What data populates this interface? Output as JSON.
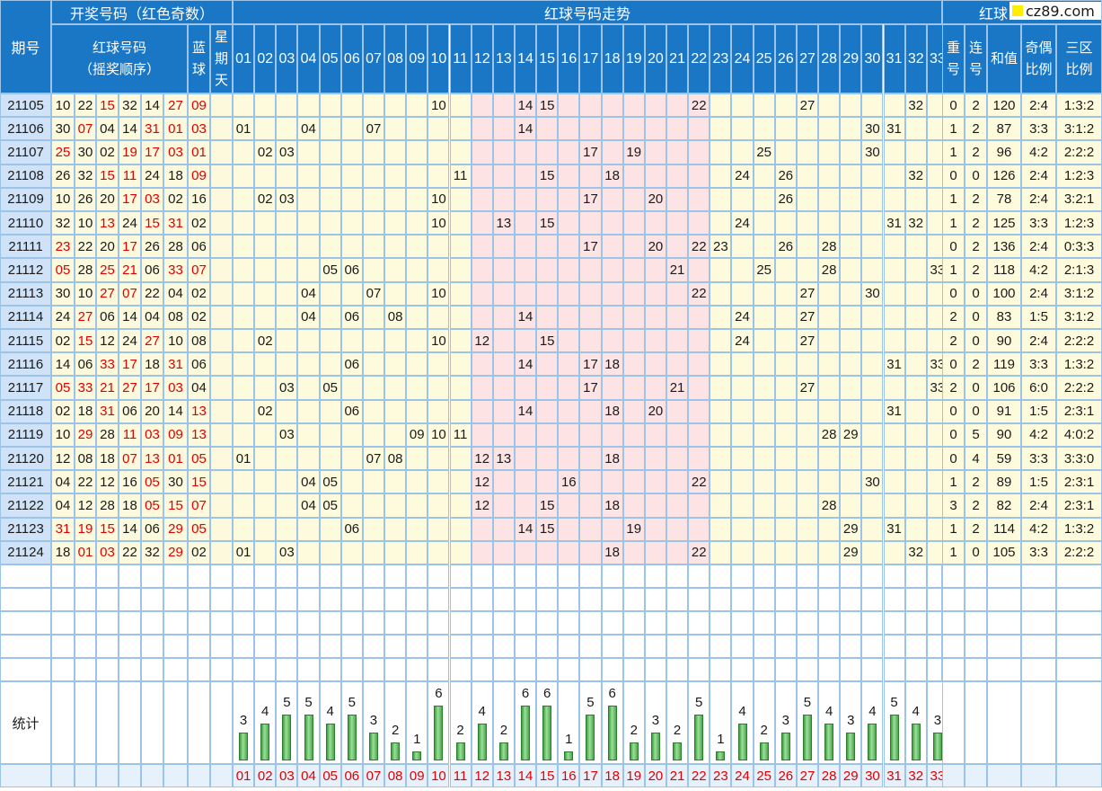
{
  "headers": {
    "period": "期号",
    "draw_section": "开奖号码（红色奇数）",
    "red_balls": "红球号码",
    "draw_order": "（摇奖顺序）",
    "blue_ball": "蓝球",
    "weekday": "星期天",
    "trend_section": "红球号码走势",
    "stats_section": "红球",
    "repeat": "重号",
    "consecutive": "连号",
    "sum": "和值",
    "odd_even": "奇偶比例",
    "three_zone": "三区比例"
  },
  "logo": {
    "text": "cz89.com"
  },
  "stats_label": "统计",
  "chart_data": {
    "type": "table",
    "title": "红球号码走势",
    "columns": [
      "01",
      "02",
      "03",
      "04",
      "05",
      "06",
      "07",
      "08",
      "09",
      "10",
      "11",
      "12",
      "13",
      "14",
      "15",
      "16",
      "17",
      "18",
      "19",
      "20",
      "21",
      "22",
      "23",
      "24",
      "25",
      "26",
      "27",
      "28",
      "29",
      "30",
      "31",
      "32",
      "33"
    ],
    "rows": [
      {
        "period": "21105",
        "reds": [
          "10",
          "22",
          "15",
          "32",
          "14",
          "27"
        ],
        "blue": "09",
        "repeat": "0",
        "consec": "2",
        "sum": "120",
        "oe": "2:4",
        "zone": "1:3:2"
      },
      {
        "period": "21106",
        "reds": [
          "30",
          "07",
          "04",
          "14",
          "31",
          "01"
        ],
        "blue": "03",
        "repeat": "1",
        "consec": "2",
        "sum": "87",
        "oe": "3:3",
        "zone": "3:1:2"
      },
      {
        "period": "21107",
        "reds": [
          "25",
          "30",
          "02",
          "19",
          "17",
          "03"
        ],
        "blue": "01",
        "repeat": "1",
        "consec": "2",
        "sum": "96",
        "oe": "4:2",
        "zone": "2:2:2"
      },
      {
        "period": "21108",
        "reds": [
          "26",
          "32",
          "15",
          "11",
          "24",
          "18"
        ],
        "blue": "09",
        "repeat": "0",
        "consec": "0",
        "sum": "126",
        "oe": "2:4",
        "zone": "1:2:3"
      },
      {
        "period": "21109",
        "reds": [
          "10",
          "26",
          "20",
          "17",
          "03",
          "02"
        ],
        "blue": "16",
        "repeat": "1",
        "consec": "2",
        "sum": "78",
        "oe": "2:4",
        "zone": "3:2:1"
      },
      {
        "period": "21110",
        "reds": [
          "32",
          "10",
          "13",
          "24",
          "15",
          "31"
        ],
        "blue": "02",
        "repeat": "1",
        "consec": "2",
        "sum": "125",
        "oe": "3:3",
        "zone": "1:2:3"
      },
      {
        "period": "21111",
        "reds": [
          "23",
          "22",
          "20",
          "17",
          "26",
          "28"
        ],
        "blue": "06",
        "repeat": "0",
        "consec": "2",
        "sum": "136",
        "oe": "2:4",
        "zone": "0:3:3"
      },
      {
        "period": "21112",
        "reds": [
          "05",
          "28",
          "25",
          "21",
          "06",
          "33"
        ],
        "blue": "07",
        "repeat": "1",
        "consec": "2",
        "sum": "118",
        "oe": "4:2",
        "zone": "2:1:3"
      },
      {
        "period": "21113",
        "reds": [
          "30",
          "10",
          "27",
          "07",
          "22",
          "04"
        ],
        "blue": "02",
        "repeat": "0",
        "consec": "0",
        "sum": "100",
        "oe": "2:4",
        "zone": "3:1:2"
      },
      {
        "period": "21114",
        "reds": [
          "24",
          "27",
          "06",
          "14",
          "04",
          "08"
        ],
        "blue": "02",
        "repeat": "2",
        "consec": "0",
        "sum": "83",
        "oe": "1:5",
        "zone": "3:1:2"
      },
      {
        "period": "21115",
        "reds": [
          "02",
          "15",
          "12",
          "24",
          "27",
          "10"
        ],
        "blue": "08",
        "repeat": "2",
        "consec": "0",
        "sum": "90",
        "oe": "2:4",
        "zone": "2:2:2"
      },
      {
        "period": "21116",
        "reds": [
          "14",
          "06",
          "33",
          "17",
          "18",
          "31"
        ],
        "blue": "06",
        "repeat": "0",
        "consec": "2",
        "sum": "119",
        "oe": "3:3",
        "zone": "1:3:2"
      },
      {
        "period": "21117",
        "reds": [
          "05",
          "33",
          "21",
          "27",
          "17",
          "03"
        ],
        "blue": "04",
        "repeat": "2",
        "consec": "0",
        "sum": "106",
        "oe": "6:0",
        "zone": "2:2:2"
      },
      {
        "period": "21118",
        "reds": [
          "02",
          "18",
          "31",
          "06",
          "20",
          "14"
        ],
        "blue": "13",
        "repeat": "0",
        "consec": "0",
        "sum": "91",
        "oe": "1:5",
        "zone": "2:3:1"
      },
      {
        "period": "21119",
        "reds": [
          "10",
          "29",
          "28",
          "11",
          "03",
          "09"
        ],
        "blue": "13",
        "repeat": "0",
        "consec": "5",
        "sum": "90",
        "oe": "4:2",
        "zone": "4:0:2"
      },
      {
        "period": "21120",
        "reds": [
          "12",
          "08",
          "18",
          "07",
          "13",
          "01"
        ],
        "blue": "05",
        "repeat": "0",
        "consec": "4",
        "sum": "59",
        "oe": "3:3",
        "zone": "3:3:0"
      },
      {
        "period": "21121",
        "reds": [
          "04",
          "22",
          "12",
          "16",
          "05",
          "30"
        ],
        "blue": "15",
        "repeat": "1",
        "consec": "2",
        "sum": "89",
        "oe": "1:5",
        "zone": "2:3:1"
      },
      {
        "period": "21122",
        "reds": [
          "04",
          "12",
          "28",
          "18",
          "05",
          "15"
        ],
        "blue": "07",
        "repeat": "3",
        "consec": "2",
        "sum": "82",
        "oe": "2:4",
        "zone": "2:3:1"
      },
      {
        "period": "21123",
        "reds": [
          "31",
          "19",
          "15",
          "14",
          "06",
          "29"
        ],
        "blue": "05",
        "repeat": "1",
        "consec": "2",
        "sum": "114",
        "oe": "4:2",
        "zone": "1:3:2"
      },
      {
        "period": "21124",
        "reds": [
          "18",
          "01",
          "03",
          "22",
          "32",
          "29"
        ],
        "blue": "02",
        "repeat": "1",
        "consec": "0",
        "sum": "105",
        "oe": "3:3",
        "zone": "2:2:2"
      }
    ],
    "stats_counts": [
      3,
      4,
      5,
      5,
      4,
      5,
      3,
      2,
      1,
      6,
      2,
      4,
      2,
      6,
      6,
      1,
      5,
      6,
      2,
      3,
      2,
      5,
      1,
      4,
      2,
      3,
      5,
      4,
      3,
      4,
      5,
      4,
      3
    ]
  }
}
